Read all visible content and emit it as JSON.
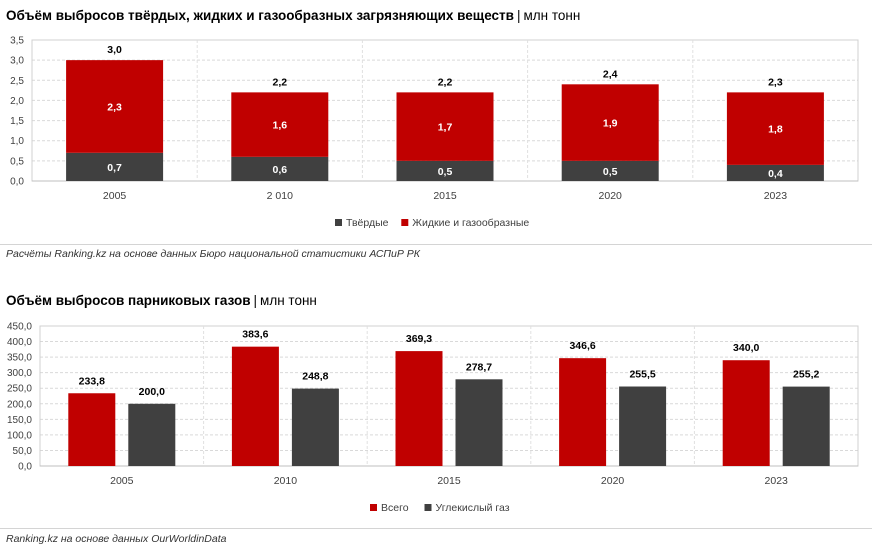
{
  "chart1": {
    "title": "Объём выбросов твёрдых, жидких и газообразных загрязняющих веществ",
    "unit": "млн тонн",
    "source": "Расчёты Ranking.kz на основе данных Бюро национальной статистики АСПиР РК"
  },
  "chart2": {
    "title": "Объём выбросов парниковых газов",
    "unit": "млн тонн",
    "source": "Ranking.kz на основе данных OurWorldinData"
  },
  "colors": {
    "red": "#c00000",
    "dark": "#404040"
  },
  "chart_data": [
    {
      "type": "bar",
      "stacked": true,
      "categories": [
        "2005",
        "2 010",
        "2015",
        "2020",
        "2023"
      ],
      "series": [
        {
          "name": "Твёрдые",
          "values": [
            0.7,
            0.6,
            0.5,
            0.5,
            0.4
          ],
          "labels": [
            "0,7",
            "0,6",
            "0,5",
            "0,5",
            "0,4"
          ]
        },
        {
          "name": "Жидкие и газообразные",
          "values": [
            2.3,
            1.6,
            1.7,
            1.9,
            1.8
          ],
          "labels": [
            "2,3",
            "1,6",
            "1,7",
            "1,9",
            "1,8"
          ]
        }
      ],
      "totals": [
        3.0,
        2.2,
        2.2,
        2.4,
        2.3
      ],
      "total_labels": [
        "3,0",
        "2,2",
        "2,2",
        "2,4",
        "2,3"
      ],
      "yticks": [
        "0,0",
        "0,5",
        "1,0",
        "1,5",
        "2,0",
        "2,5",
        "3,0",
        "3,5"
      ],
      "ylim": [
        0,
        3.5
      ],
      "grid": true,
      "legend_position": "bottom"
    },
    {
      "type": "bar",
      "stacked": false,
      "categories": [
        "2005",
        "2010",
        "2015",
        "2020",
        "2023"
      ],
      "series": [
        {
          "name": "Всего",
          "values": [
            233.8,
            383.6,
            369.3,
            346.6,
            340.0
          ],
          "labels": [
            "233,8",
            "383,6",
            "369,3",
            "346,6",
            "340,0"
          ]
        },
        {
          "name": "Углекислый газ",
          "values": [
            200.0,
            248.8,
            278.7,
            255.5,
            255.2
          ],
          "labels": [
            "200,0",
            "248,8",
            "278,7",
            "255,5",
            "255,2"
          ]
        }
      ],
      "yticks": [
        "0,0",
        "50,0",
        "100,0",
        "150,0",
        "200,0",
        "250,0",
        "300,0",
        "350,0",
        "400,0",
        "450,0"
      ],
      "ylim": [
        0,
        450
      ],
      "grid": true,
      "legend_position": "bottom"
    }
  ]
}
